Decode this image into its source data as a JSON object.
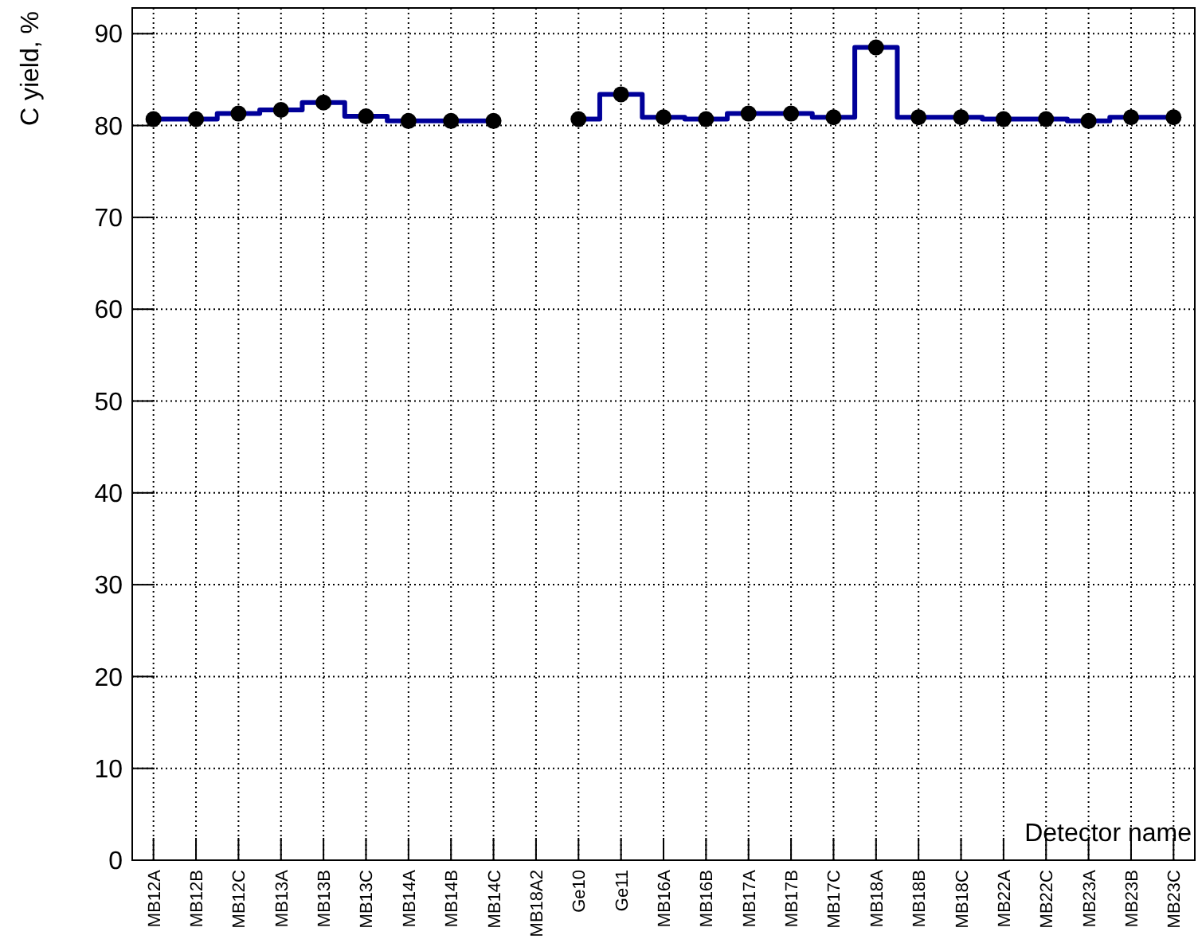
{
  "chart_data": {
    "type": "scatter",
    "xlabel": "Detector name",
    "ylabel": "C yield, %",
    "categories": [
      "MB12A",
      "MB12B",
      "MB12C",
      "MB13A",
      "MB13B",
      "MB13C",
      "MB14A",
      "MB14B",
      "MB14C",
      "MB18A2",
      "Ge10",
      "Ge11",
      "MB16A",
      "MB16B",
      "MB17A",
      "MB17B",
      "MB17C",
      "MB18A",
      "MB18B",
      "MB18C",
      "MB22A",
      "MB22C",
      "MB23A",
      "MB23B",
      "MB23C"
    ],
    "series": [
      {
        "type": "step",
        "marker": "none",
        "color": "#000099",
        "values": [
          80.7,
          80.7,
          81.3,
          81.7,
          82.5,
          81.0,
          80.5,
          80.5,
          80.5,
          null,
          80.7,
          83.4,
          80.9,
          80.7,
          81.3,
          81.3,
          80.9,
          88.5,
          80.9,
          80.9,
          80.7,
          80.7,
          80.5,
          80.9,
          80.9
        ]
      },
      {
        "color": "#000000",
        "values": [
          80.7,
          80.7,
          81.3,
          81.7,
          82.5,
          81.0,
          80.5,
          80.5,
          80.5,
          null,
          80.7,
          83.4,
          80.9,
          80.7,
          81.3,
          81.3,
          80.9,
          88.5,
          80.9,
          80.9,
          80.7,
          80.7,
          80.5,
          80.9,
          80.9
        ]
      }
    ],
    "ylim": [
      0,
      92.8
    ],
    "yticks": [
      0,
      10,
      20,
      30,
      40,
      50,
      60,
      70,
      80,
      90
    ],
    "grid": true,
    "marker": "circle"
  }
}
